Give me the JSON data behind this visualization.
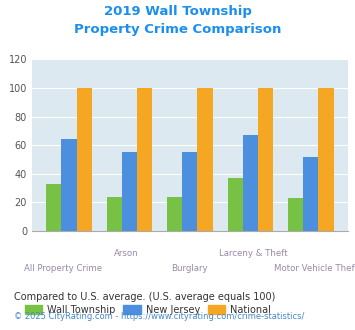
{
  "title_line1": "2019 Wall Township",
  "title_line2": "Property Crime Comparison",
  "title_color": "#1a8fef",
  "categories": [
    "All Property Crime",
    "Arson",
    "Burglary",
    "Larceny & Theft",
    "Motor Vehicle Theft"
  ],
  "wall_township": [
    33,
    24,
    24,
    37,
    23
  ],
  "new_jersey": [
    64,
    55,
    55,
    67,
    52
  ],
  "national": [
    100,
    100,
    100,
    100,
    100
  ],
  "bar_colors": {
    "wall": "#77c244",
    "nj": "#4b8fde",
    "national": "#f5a623"
  },
  "ylim": [
    0,
    120
  ],
  "yticks": [
    0,
    20,
    40,
    60,
    80,
    100,
    120
  ],
  "legend_labels": [
    "Wall Township",
    "New Jersey",
    "National"
  ],
  "footnote1": "Compared to U.S. average. (U.S. average equals 100)",
  "footnote2": "© 2025 CityRating.com - https://www.cityrating.com/crime-statistics/",
  "footnote1_color": "#333333",
  "footnote2_color": "#4488cc",
  "plot_bg": "#dce9f0",
  "xtick_color": "#9988aa",
  "ytick_color": "#555555"
}
